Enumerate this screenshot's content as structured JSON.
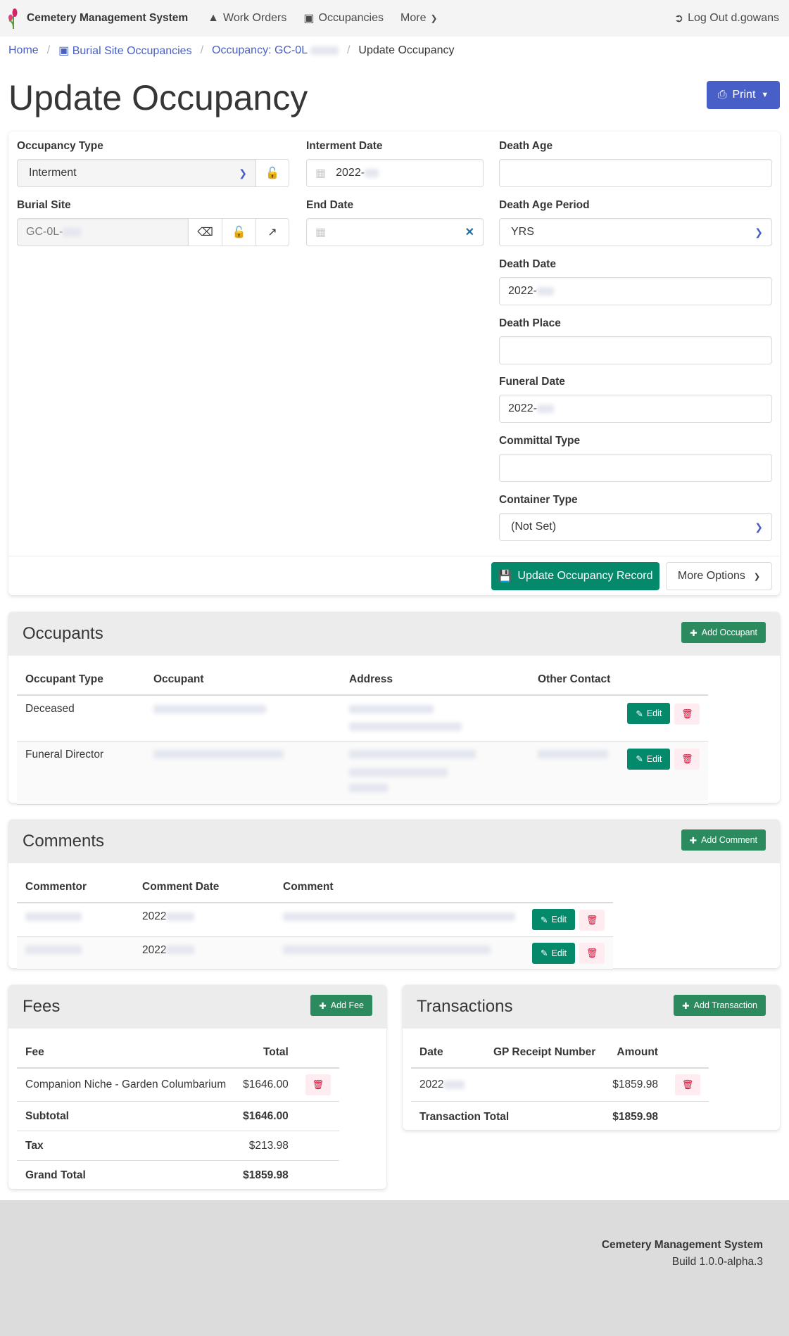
{
  "navbar": {
    "brand": "Cemetery Management System",
    "items": [
      {
        "label": "Work Orders",
        "icon": "hard-hat-icon"
      },
      {
        "label": "Occupancies",
        "icon": "occupancy-icon"
      },
      {
        "label": "More",
        "icon": "chevron-down-icon"
      }
    ],
    "logout": "Log Out d.gowans"
  },
  "breadcrumb": {
    "home": "Home",
    "occupancies": "Burial Site Occupancies",
    "occupancy": "Occupancy: GC-0L",
    "current": "Update Occupancy"
  },
  "page": {
    "title": "Update Occupancy",
    "print_label": "Print"
  },
  "form": {
    "occupancy_type": {
      "label": "Occupancy Type",
      "value": "Interment"
    },
    "burial_site": {
      "label": "Burial Site",
      "value": "GC-0L-"
    },
    "interment_date": {
      "label": "Interment Date",
      "value": "2022-"
    },
    "end_date": {
      "label": "End Date",
      "value": ""
    },
    "death_age": {
      "label": "Death Age",
      "value": ""
    },
    "death_age_period": {
      "label": "Death Age Period",
      "value": "YRS"
    },
    "death_date": {
      "label": "Death Date",
      "value": "2022-"
    },
    "death_place": {
      "label": "Death Place",
      "value": ""
    },
    "funeral_date": {
      "label": "Funeral Date",
      "value": "2022-"
    },
    "committal_type": {
      "label": "Committal Type",
      "value": ""
    },
    "container_type": {
      "label": "Container Type",
      "value": "(Not Set)"
    },
    "update_label": "Update Occupancy Record",
    "more_options_label": "More Options"
  },
  "occupants": {
    "title": "Occupants",
    "add_label": "Add Occupant",
    "columns": [
      "Occupant Type",
      "Occupant",
      "Address",
      "Other Contact"
    ],
    "rows": [
      {
        "type": "Deceased"
      },
      {
        "type": "Funeral Director"
      }
    ]
  },
  "comments": {
    "title": "Comments",
    "add_label": "Add Comment",
    "columns": [
      "Commentor",
      "Comment Date",
      "Comment"
    ],
    "rows": [
      {
        "date": "2022"
      },
      {
        "date": "2022"
      }
    ]
  },
  "fees": {
    "title": "Fees",
    "add_label": "Add Fee",
    "columns": [
      "Fee",
      "Total"
    ],
    "rows": [
      {
        "fee": "Companion Niche - Garden Columbarium",
        "total": "$1646.00"
      }
    ],
    "subtotal_label": "Subtotal",
    "subtotal": "$1646.00",
    "tax_label": "Tax",
    "tax": "$213.98",
    "grand_total_label": "Grand Total",
    "grand_total": "$1859.98"
  },
  "transactions": {
    "title": "Transactions",
    "add_label": "Add Transaction",
    "columns": [
      "Date",
      "GP Receipt Number",
      "Amount"
    ],
    "rows": [
      {
        "date": "2022",
        "amount": "$1859.98"
      }
    ],
    "total_label": "Transaction Total",
    "total": "$1859.98"
  },
  "edit_label": "Edit",
  "footer": {
    "app": "Cemetery Management System",
    "build": "Build 1.0.0-alpha.3"
  },
  "colors": {
    "primary": "#485fc7",
    "success": "#048a6b",
    "danger": "#cc0f35"
  }
}
